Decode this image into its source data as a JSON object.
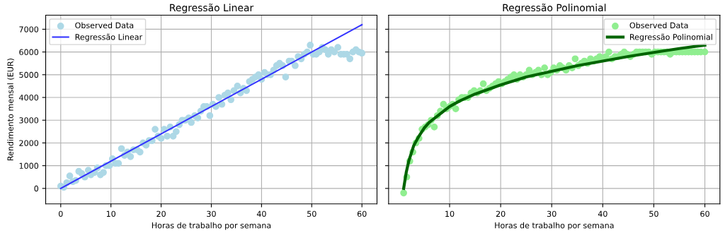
{
  "chart_data": [
    {
      "type": "scatter",
      "title": "Regressão Linear",
      "xlabel": "Horas de trabalho por semana",
      "ylabel": "Rendimento mensal (EUR)",
      "xlim": [
        -3,
        63
      ],
      "xticks": [
        0,
        10,
        20,
        30,
        40,
        50,
        60
      ],
      "ylim": [
        -680,
        7620
      ],
      "yticks": [
        0,
        1000,
        2000,
        3000,
        4000,
        5000,
        6000,
        7000
      ],
      "grid": true,
      "legend": "top left",
      "series": [
        {
          "name": "Observed Data",
          "color": "#add8e6",
          "marker": "circle",
          "x": [
            0,
            0.6,
            1.2,
            1.8,
            2.4,
            3,
            3.6,
            4.2,
            4.8,
            5.5,
            6,
            6.7,
            7.3,
            7.9,
            8.5,
            9,
            9.7,
            10.3,
            10.9,
            11.5,
            12.1,
            12.7,
            13.3,
            13.9,
            14.5,
            15.2,
            15.8,
            16.4,
            17,
            17.6,
            18.2,
            18.8,
            19.4,
            20,
            20.6,
            21.2,
            21.8,
            22.4,
            23,
            23.6,
            24.2,
            24.8,
            25.5,
            26,
            26.7,
            27.3,
            27.9,
            28.5,
            29.1,
            29.7,
            30.3,
            30.9,
            31.5,
            32.1,
            32.7,
            33.3,
            33.9,
            34.5,
            35.2,
            35.8,
            36.4,
            37,
            37.6,
            38.2,
            38.8,
            39.4,
            40,
            40.6,
            41.2,
            41.8,
            42.4,
            43,
            43.6,
            44.2,
            44.8,
            45.5,
            46,
            46.7,
            47.3,
            47.9,
            48.5,
            49.1,
            49.7,
            50.3,
            50.9,
            51.5,
            52.1,
            52.7,
            53.3,
            53.9,
            54.5,
            55.2,
            55.8,
            56.4,
            57,
            57.6,
            58.2,
            58.8,
            59.4,
            60
          ],
          "values": [
            100,
            50,
            250,
            550,
            300,
            350,
            750,
            650,
            500,
            800,
            600,
            700,
            900,
            600,
            700,
            1000,
            1000,
            1300,
            1100,
            1100,
            1750,
            1450,
            1600,
            1400,
            1700,
            1700,
            1600,
            2000,
            1900,
            2100,
            2100,
            2600,
            2300,
            2200,
            2600,
            2300,
            2700,
            2300,
            2500,
            2800,
            3000,
            3000,
            3100,
            2900,
            3200,
            3100,
            3400,
            3600,
            3600,
            3200,
            3700,
            3600,
            4000,
            3700,
            4100,
            4200,
            3900,
            4300,
            4500,
            4200,
            4400,
            4300,
            4700,
            4800,
            4900,
            5000,
            4800,
            5100,
            5000,
            5000,
            5200,
            5400,
            5500,
            5400,
            4900,
            5600,
            5600,
            5400,
            5800,
            5700,
            5900,
            6000,
            6300,
            5900,
            5900,
            6000,
            6200,
            6100,
            5900,
            6100,
            6000,
            6200,
            5900,
            5900,
            5900,
            5700,
            6000,
            6100,
            6000,
            5950
          ]
        },
        {
          "name": "Regressão Linear",
          "type": "line",
          "color": "#3333ff",
          "marker": "none",
          "line_style": "solid",
          "x": [
            0,
            60
          ],
          "values": [
            0,
            7200
          ]
        }
      ]
    },
    {
      "type": "scatter",
      "title": "Regressão Polinomial",
      "xlabel": "Horas de trabalho por semana",
      "xlim": [
        -1.95,
        62.95
      ],
      "xticks": [
        10,
        20,
        30,
        40,
        50,
        60
      ],
      "ylim": [
        -680,
        7620
      ],
      "yticks": [
        0,
        1000,
        2000,
        3000,
        4000,
        5000,
        6000,
        7000
      ],
      "tick_labels": "x",
      "grid": true,
      "legend": "top right",
      "series": [
        {
          "name": "Observed Data",
          "color": "#90ee90",
          "marker": "circle",
          "x": [
            1,
            1.6,
            2.2,
            2.8,
            3.4,
            4,
            4.6,
            5.2,
            5.8,
            6.4,
            7,
            7.6,
            8.2,
            8.8,
            9.4,
            10,
            10.6,
            11.2,
            11.8,
            12.4,
            13,
            13.6,
            14.2,
            14.8,
            15.4,
            16,
            16.6,
            17.2,
            17.8,
            18.4,
            19,
            19.6,
            20.2,
            20.8,
            21.4,
            22,
            22.6,
            23.2,
            23.8,
            24.4,
            25,
            25.6,
            26.2,
            26.8,
            27.4,
            28,
            28.6,
            29.2,
            29.8,
            30.4,
            31,
            31.6,
            32.2,
            32.8,
            33.4,
            34,
            34.6,
            35.2,
            35.8,
            36.4,
            37,
            37.6,
            38.2,
            38.8,
            39.4,
            40,
            40.6,
            41.2,
            41.8,
            42.4,
            43,
            43.6,
            44.2,
            44.8,
            45.4,
            46,
            46.6,
            47.2,
            47.8,
            48.4,
            49,
            49.6,
            50.2,
            50.8,
            51.4,
            52,
            52.6,
            53.2,
            53.8,
            54.4,
            55,
            55.6,
            56.2,
            56.8,
            57.4,
            58,
            58.6,
            59.2,
            60
          ],
          "values": [
            -200,
            500,
            1200,
            1600,
            2000,
            2200,
            2600,
            2700,
            2800,
            3000,
            2700,
            3200,
            3400,
            3700,
            3500,
            3600,
            3700,
            3500,
            3900,
            4000,
            4000,
            4000,
            4200,
            4300,
            4200,
            4300,
            4600,
            4300,
            4400,
            4500,
            4600,
            4700,
            4600,
            4700,
            4800,
            4900,
            5000,
            4800,
            5000,
            4900,
            5000,
            5200,
            5000,
            5100,
            5200,
            5000,
            5300,
            5000,
            5100,
            5300,
            5200,
            5400,
            5300,
            5200,
            5400,
            5300,
            5700,
            5400,
            5500,
            5600,
            5500,
            5700,
            5600,
            5700,
            5800,
            5700,
            5800,
            6000,
            5700,
            5800,
            5800,
            5900,
            6000,
            5900,
            5800,
            5900,
            6000,
            6000,
            6000,
            6000,
            6000,
            5900,
            6000,
            6000,
            6000,
            6000,
            6000,
            5900,
            6000,
            6000,
            6000,
            6000,
            6000,
            6000,
            6000,
            6000,
            6000,
            6000,
            6000
          ]
        },
        {
          "name": "Regressão Polinomial",
          "type": "line",
          "color": "#006400",
          "marker": "none",
          "line_style": "solid",
          "x": [
            1,
            1.5,
            2,
            3,
            4,
            5,
            6,
            8,
            10,
            12,
            15,
            20,
            25,
            30,
            35,
            40,
            45,
            50,
            55,
            60
          ],
          "values": [
            0,
            700,
            1200,
            1900,
            2300,
            2650,
            2900,
            3250,
            3600,
            3850,
            4150,
            4550,
            4900,
            5150,
            5400,
            5600,
            5800,
            5980,
            6150,
            6300
          ]
        }
      ]
    }
  ]
}
